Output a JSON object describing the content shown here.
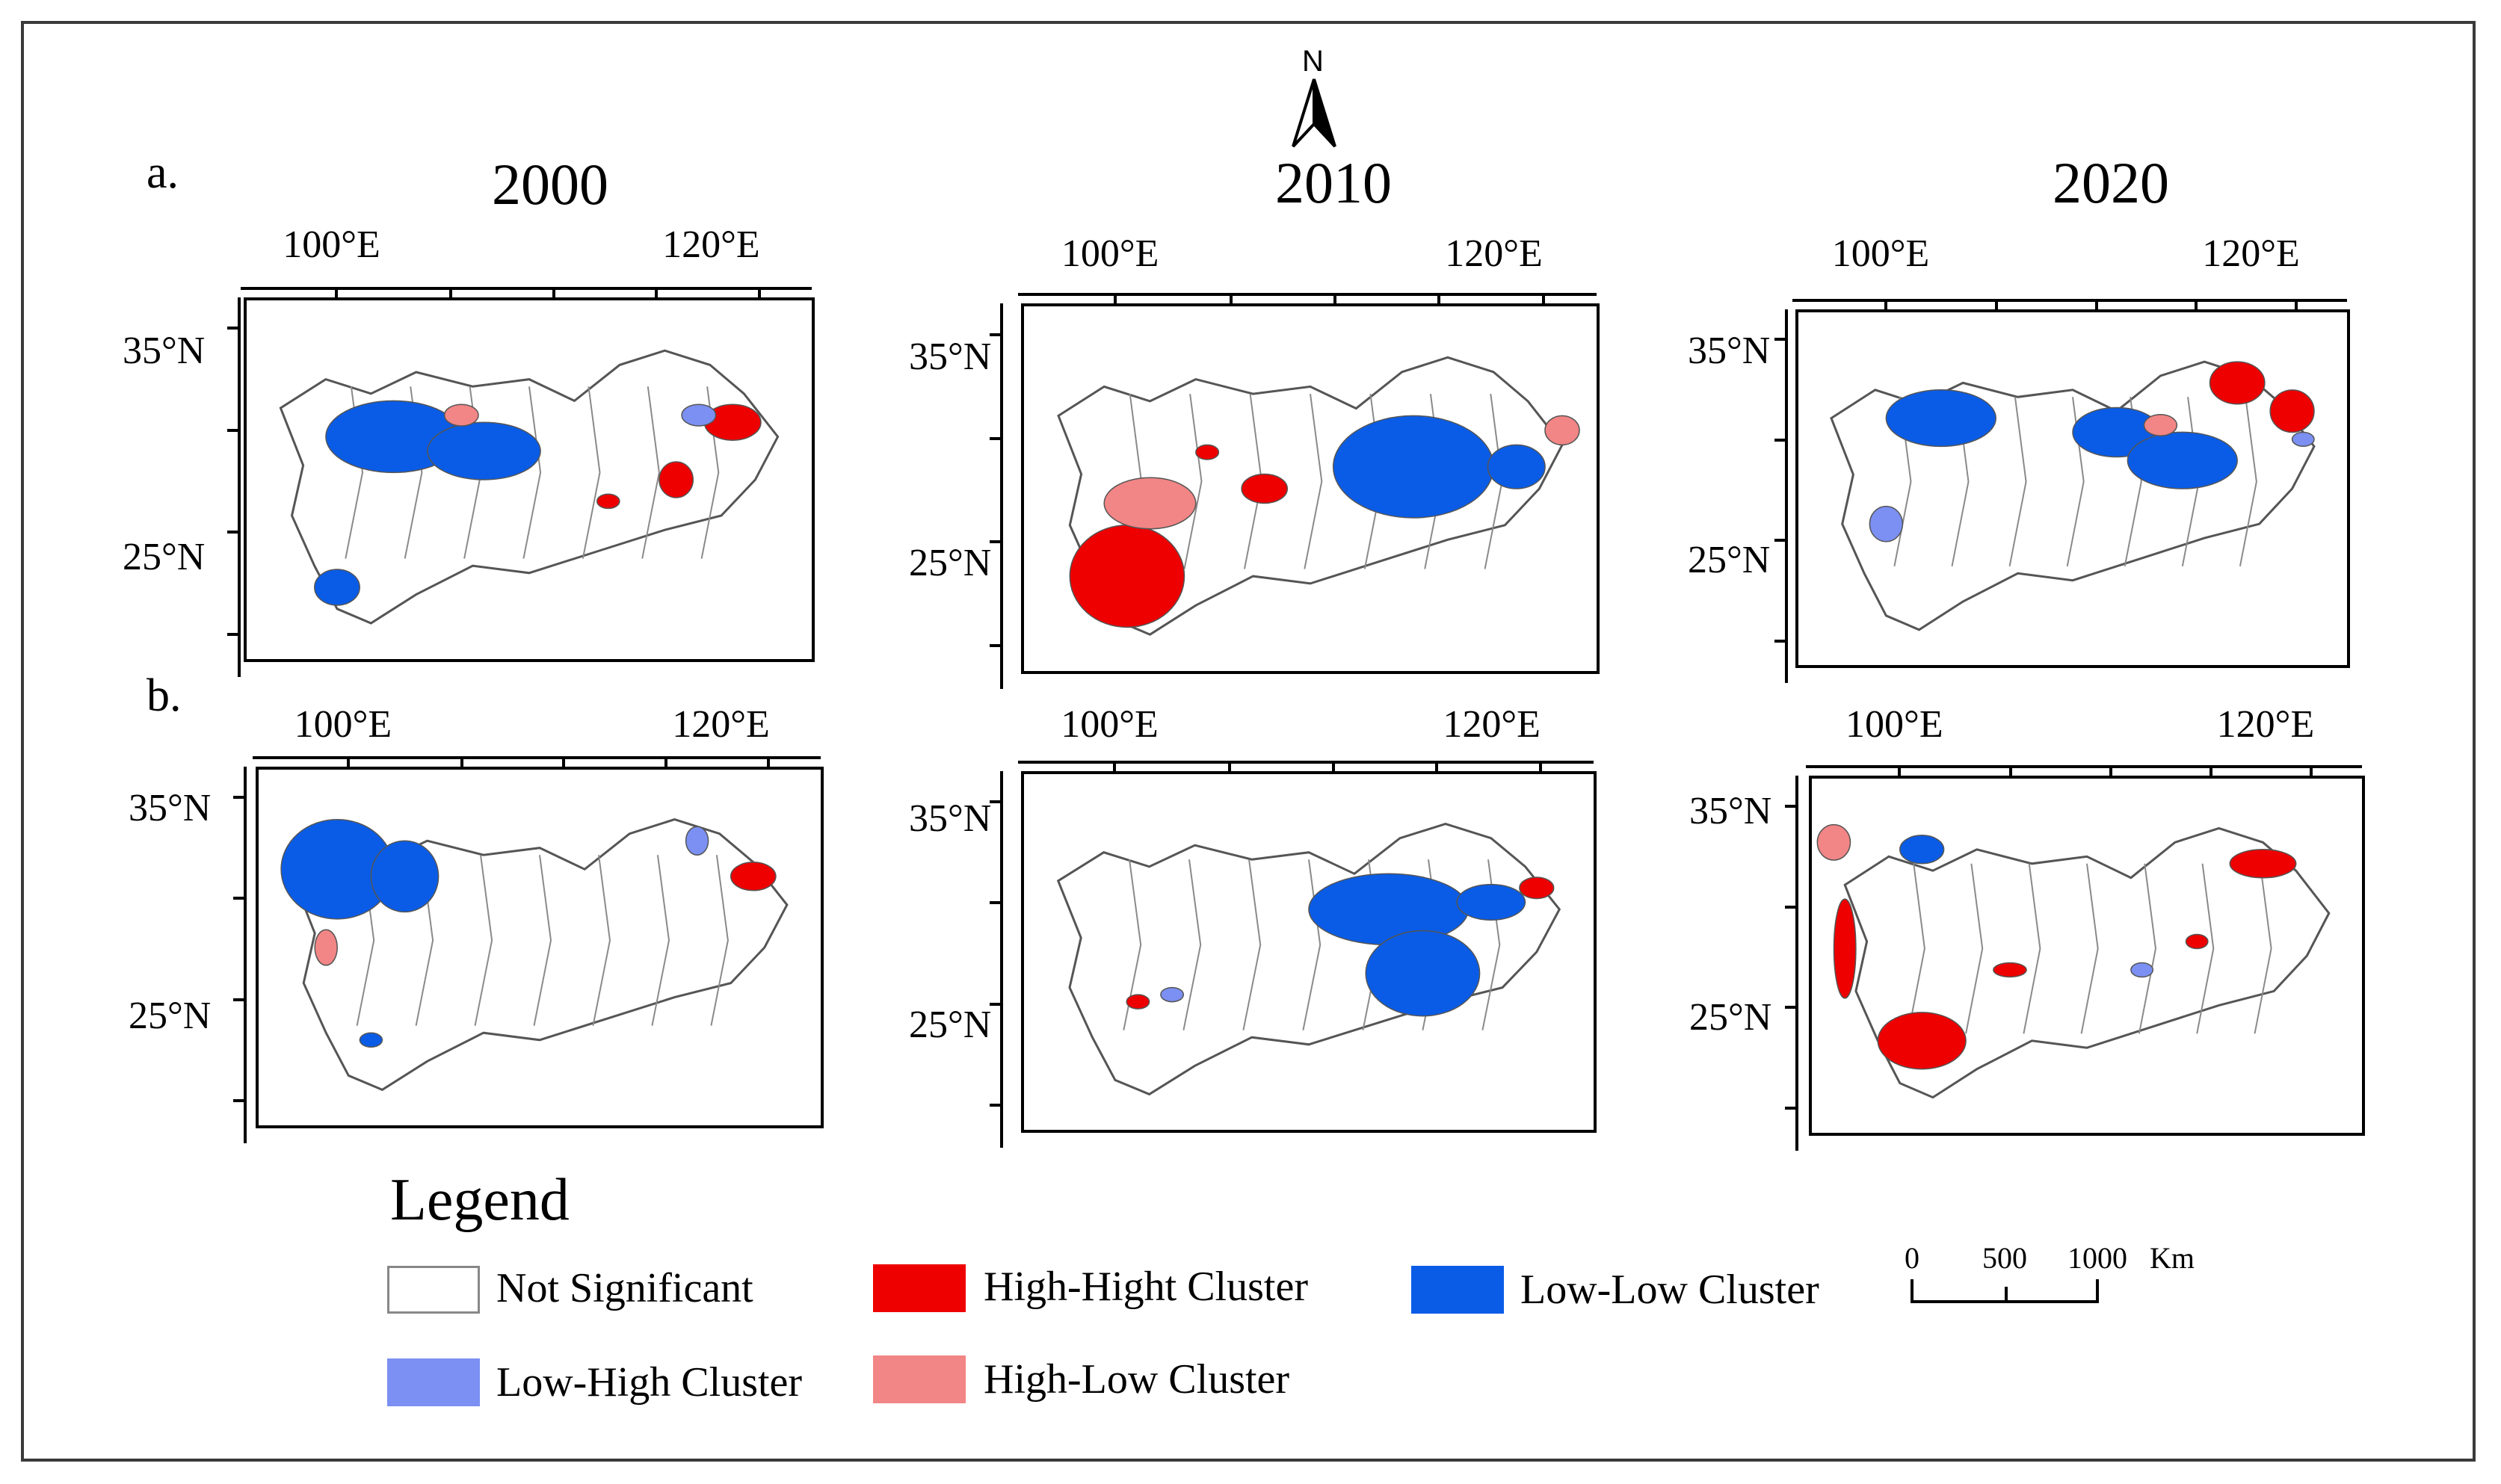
{
  "panel_labels": {
    "a": "a.",
    "b": "b."
  },
  "years": [
    "2000",
    "2010",
    "2020"
  ],
  "lon_ticks": [
    "100°E",
    "120°E"
  ],
  "lat_ticks": [
    "35°N",
    "25°N"
  ],
  "north_arrow": {
    "letter": "N",
    "icon": "north-arrow-icon"
  },
  "legend": {
    "title": "Legend",
    "items": [
      {
        "label": "Not Significant",
        "color": "#ffffff"
      },
      {
        "label": "High-Hight Cluster",
        "color": "#ee0000"
      },
      {
        "label": "Low-Low Cluster",
        "color": "#0a5ce6"
      },
      {
        "label": "Low-High Cluster",
        "color": "#7b90f2"
      },
      {
        "label": "High-Low Cluster",
        "color": "#f28585"
      }
    ]
  },
  "scale_bar": {
    "labels": [
      "0",
      "500",
      "1000"
    ],
    "unit": "Km"
  },
  "colors": {
    "hh": "#ee0000",
    "ll": "#0a5ce6",
    "lh": "#7b90f2",
    "hl": "#f28585",
    "border": "#555555"
  }
}
